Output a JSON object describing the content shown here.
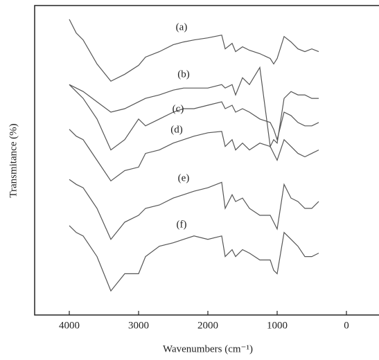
{
  "chart_data": {
    "type": "line",
    "x_label": "Wavenumbers (cm⁻¹)",
    "y_label": "Transmitance (%)",
    "x": [
      4000,
      3900,
      3800,
      3600,
      3400,
      3200,
      3000,
      2900,
      2700,
      2500,
      2350,
      2200,
      2000,
      1800,
      1750,
      1650,
      1600,
      1500,
      1400,
      1250,
      1100,
      1050,
      1000,
      900,
      800,
      700,
      600,
      500,
      400
    ],
    "series": [
      {
        "name": "(a)",
        "color": "#555555",
        "values": [
          430,
          410,
          400,
          365,
          340,
          350,
          363,
          375,
          383,
          393,
          397,
          400,
          403,
          407,
          387,
          395,
          383,
          390,
          385,
          380,
          373,
          365,
          373,
          405,
          397,
          387,
          383,
          387,
          383
        ]
      },
      {
        "name": "(b)",
        "color": "#555555",
        "values": [
          335,
          330,
          325,
          310,
          295,
          300,
          310,
          315,
          320,
          327,
          330,
          330,
          330,
          335,
          330,
          335,
          320,
          345,
          335,
          360,
          245,
          255,
          250,
          315,
          325,
          320,
          320,
          315,
          315
        ]
      },
      {
        "name": "(c)",
        "color": "#555555",
        "values": [
          335,
          325,
          315,
          285,
          240,
          255,
          285,
          275,
          285,
          295,
          300,
          300,
          305,
          310,
          300,
          305,
          295,
          300,
          295,
          285,
          280,
          270,
          255,
          295,
          290,
          280,
          275,
          275,
          280
        ]
      },
      {
        "name": "(d)",
        "color": "#555555",
        "values": [
          270,
          260,
          255,
          225,
          195,
          210,
          215,
          235,
          240,
          250,
          255,
          260,
          265,
          267,
          245,
          255,
          240,
          250,
          240,
          250,
          245,
          235,
          225,
          255,
          245,
          235,
          230,
          235,
          240
        ]
      },
      {
        "name": "(e)",
        "color": "#555555",
        "values": [
          197,
          190,
          185,
          155,
          110,
          135,
          145,
          155,
          160,
          170,
          175,
          180,
          185,
          193,
          155,
          175,
          165,
          170,
          155,
          145,
          145,
          135,
          125,
          190,
          170,
          165,
          155,
          155,
          165
        ]
      },
      {
        "name": "(f)",
        "color": "#555555",
        "values": [
          130,
          120,
          115,
          85,
          35,
          60,
          60,
          85,
          100,
          105,
          110,
          115,
          110,
          115,
          85,
          95,
          85,
          95,
          90,
          80,
          80,
          65,
          60,
          120,
          110,
          100,
          85,
          85,
          90
        ]
      }
    ],
    "xlim": [
      4500,
      -470
    ],
    "xticks": [
      4000,
      3000,
      2000,
      1000,
      0
    ],
    "ylim": [
      0,
      450
    ]
  }
}
